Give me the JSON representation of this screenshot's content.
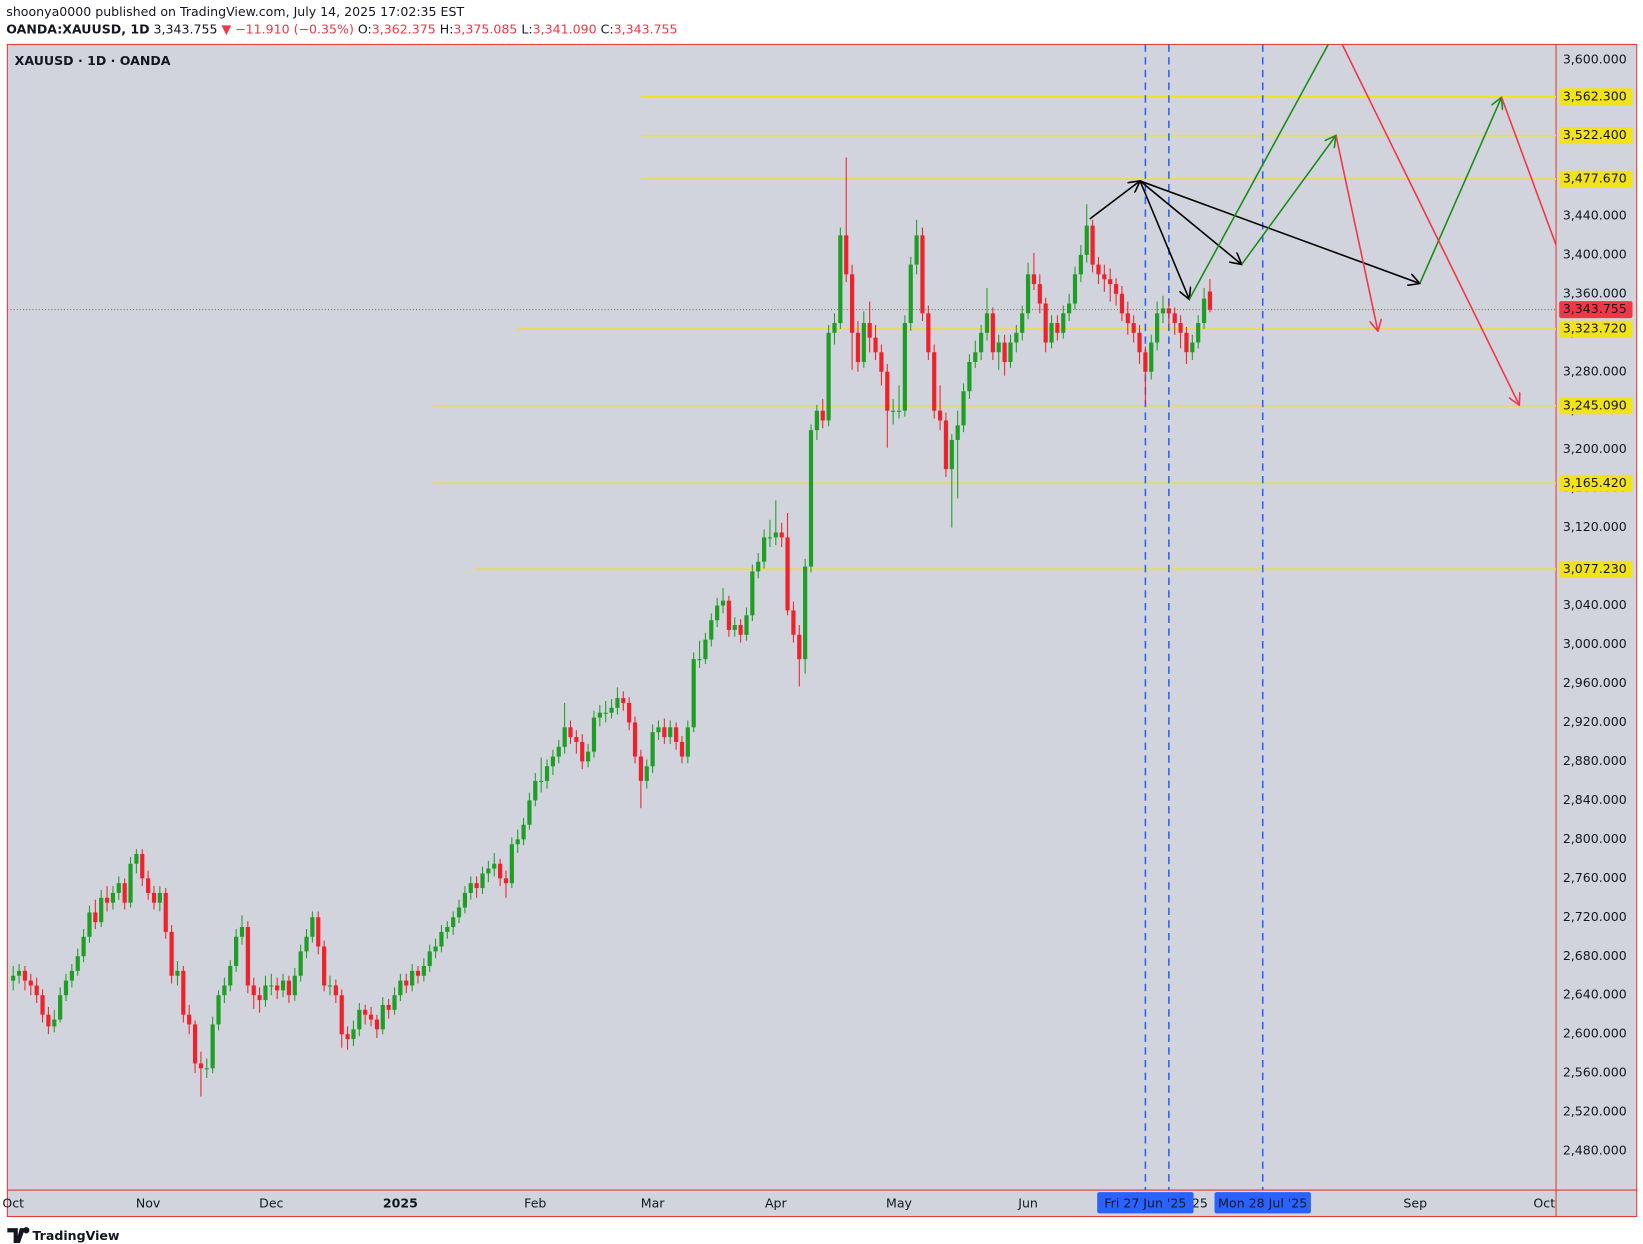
{
  "header": {
    "byline": "shoonya0000 published on TradingView.com, July 14, 2025 17:02:35 EST",
    "symbol": "OANDA:XAUUSD, 1D",
    "price": "3,343.755",
    "change": "▼ −11.910 (−0.35%)",
    "o_label": "O:",
    "o": "3,362.375",
    "h_label": "H:",
    "h": "3,375.085",
    "l_label": "L:",
    "l": "3,341.090",
    "c_label": "C:",
    "c": "3,343.755"
  },
  "brand": "TradingView",
  "chart_data": {
    "type": "candlestick",
    "legend_label": "XAUUSD · 1D · OANDA",
    "up_color": "#1f9e25",
    "down_color": "#f0212b",
    "level_color": "#f2e21a",
    "marker_color": "#2962ff",
    "last_color": "#f23645",
    "ylim": [
      2440,
      3616
    ],
    "yticks": [
      {
        "value": 2480,
        "label": "2,480.000"
      },
      {
        "value": 2520,
        "label": "2,520.000"
      },
      {
        "value": 2560,
        "label": "2,560.000"
      },
      {
        "value": 2600,
        "label": "2,600.000"
      },
      {
        "value": 2640,
        "label": "2,640.000"
      },
      {
        "value": 2680,
        "label": "2,680.000"
      },
      {
        "value": 2720,
        "label": "2,720.000"
      },
      {
        "value": 2760,
        "label": "2,760.000"
      },
      {
        "value": 2800,
        "label": "2,800.000"
      },
      {
        "value": 2840,
        "label": "2,840.000"
      },
      {
        "value": 2880,
        "label": "2,880.000"
      },
      {
        "value": 2920,
        "label": "2,920.000"
      },
      {
        "value": 2960,
        "label": "2,960.000"
      },
      {
        "value": 3000,
        "label": "3,000.000"
      },
      {
        "value": 3040,
        "label": "3,040.000"
      },
      {
        "value": 3080,
        "label": "3,080.000"
      },
      {
        "value": 3120,
        "label": "3,120.000"
      },
      {
        "value": 3160,
        "label": "3,160.000"
      },
      {
        "value": 3200,
        "label": "3,200.000"
      },
      {
        "value": 3240,
        "label": "3,240.000"
      },
      {
        "value": 3280,
        "label": "3,280.000"
      },
      {
        "value": 3320,
        "label": "3,320.000"
      },
      {
        "value": 3360,
        "label": "3,360.000"
      },
      {
        "value": 3400,
        "label": "3,400.000"
      },
      {
        "value": 3440,
        "label": "3,440.000"
      },
      {
        "value": 3480,
        "label": "3,480.000"
      },
      {
        "value": 3520,
        "label": "3,520.000"
      },
      {
        "value": 3560,
        "label": "3,560.000"
      },
      {
        "value": 3600,
        "label": "3,600.000"
      }
    ],
    "xlim": [
      -1,
      263
    ],
    "xticks": [
      {
        "value": 0,
        "label": "Oct"
      },
      {
        "value": 23,
        "label": "Nov"
      },
      {
        "value": 44,
        "label": "Dec"
      },
      {
        "value": 66,
        "label": "2025"
      },
      {
        "value": 89,
        "label": "Feb"
      },
      {
        "value": 109,
        "label": "Mar"
      },
      {
        "value": 130,
        "label": "Apr"
      },
      {
        "value": 151,
        "label": "May"
      },
      {
        "value": 173,
        "label": "Jun"
      },
      {
        "value": 202,
        "label": "'25"
      },
      {
        "value": 239,
        "label": "Sep"
      },
      {
        "value": 261,
        "label": "Oct"
      }
    ],
    "levels": [
      {
        "value": 3562.3,
        "label": "3,562.300"
      },
      {
        "value": 3522.4,
        "label": "3,522.400"
      },
      {
        "value": 3477.67,
        "label": "3,477.670"
      },
      {
        "value": 3323.72,
        "label": "3,323.720"
      },
      {
        "value": 3245.09,
        "label": "3,245.090"
      },
      {
        "value": 3165.42,
        "label": "3,165.420"
      },
      {
        "value": 3077.23,
        "label": "3,077.230"
      }
    ],
    "last_price": {
      "value": 3343.755,
      "label": "3,343.755"
    },
    "markers": [
      {
        "value": 193,
        "label": "Fri 27 Jun '25"
      },
      {
        "value": 197
      },
      {
        "value": 213,
        "label": "Mon 28 Jul '25"
      }
    ],
    "candles": [
      [
        2655,
        2670,
        2645,
        2660
      ],
      [
        2660,
        2672,
        2652,
        2665
      ],
      [
        2665,
        2670,
        2645,
        2655
      ],
      [
        2655,
        2662,
        2640,
        2650
      ],
      [
        2650,
        2658,
        2632,
        2640
      ],
      [
        2640,
        2646,
        2612,
        2620
      ],
      [
        2620,
        2628,
        2600,
        2608
      ],
      [
        2608,
        2625,
        2602,
        2615
      ],
      [
        2615,
        2648,
        2612,
        2640
      ],
      [
        2640,
        2662,
        2634,
        2655
      ],
      [
        2655,
        2672,
        2648,
        2665
      ],
      [
        2665,
        2688,
        2660,
        2680
      ],
      [
        2680,
        2708,
        2674,
        2700
      ],
      [
        2700,
        2732,
        2694,
        2725
      ],
      [
        2725,
        2738,
        2708,
        2715
      ],
      [
        2715,
        2748,
        2710,
        2740
      ],
      [
        2740,
        2752,
        2726,
        2735
      ],
      [
        2735,
        2752,
        2728,
        2745
      ],
      [
        2745,
        2762,
        2738,
        2755
      ],
      [
        2755,
        2760,
        2728,
        2735
      ],
      [
        2735,
        2782,
        2730,
        2775
      ],
      [
        2775,
        2790,
        2765,
        2785
      ],
      [
        2785,
        2790,
        2752,
        2760
      ],
      [
        2760,
        2768,
        2738,
        2745
      ],
      [
        2745,
        2752,
        2728,
        2735
      ],
      [
        2735,
        2752,
        2726,
        2745
      ],
      [
        2745,
        2750,
        2698,
        2705
      ],
      [
        2705,
        2712,
        2652,
        2660
      ],
      [
        2660,
        2675,
        2650,
        2665
      ],
      [
        2665,
        2670,
        2612,
        2620
      ],
      [
        2620,
        2630,
        2600,
        2610
      ],
      [
        2610,
        2614,
        2560,
        2570
      ],
      [
        2570,
        2582,
        2536,
        2565
      ],
      [
        2565,
        2575,
        2555,
        2565
      ],
      [
        2565,
        2618,
        2560,
        2610
      ],
      [
        2610,
        2645,
        2604,
        2640
      ],
      [
        2640,
        2658,
        2632,
        2650
      ],
      [
        2650,
        2676,
        2644,
        2670
      ],
      [
        2670,
        2708,
        2664,
        2700
      ],
      [
        2700,
        2722,
        2692,
        2710
      ],
      [
        2710,
        2716,
        2642,
        2650
      ],
      [
        2650,
        2658,
        2626,
        2640
      ],
      [
        2640,
        2648,
        2622,
        2635
      ],
      [
        2635,
        2660,
        2628,
        2650
      ],
      [
        2650,
        2662,
        2640,
        2650
      ],
      [
        2650,
        2658,
        2636,
        2645
      ],
      [
        2645,
        2662,
        2638,
        2655
      ],
      [
        2655,
        2660,
        2632,
        2640
      ],
      [
        2640,
        2668,
        2634,
        2660
      ],
      [
        2660,
        2692,
        2654,
        2685
      ],
      [
        2685,
        2708,
        2678,
        2700
      ],
      [
        2700,
        2726,
        2694,
        2720
      ],
      [
        2720,
        2726,
        2682,
        2690
      ],
      [
        2690,
        2696,
        2644,
        2650
      ],
      [
        2650,
        2660,
        2640,
        2650
      ],
      [
        2650,
        2656,
        2632,
        2640
      ],
      [
        2640,
        2646,
        2586,
        2600
      ],
      [
        2600,
        2608,
        2584,
        2595
      ],
      [
        2595,
        2614,
        2588,
        2605
      ],
      [
        2605,
        2632,
        2598,
        2625
      ],
      [
        2625,
        2630,
        2610,
        2620
      ],
      [
        2620,
        2628,
        2608,
        2615
      ],
      [
        2615,
        2620,
        2596,
        2605
      ],
      [
        2605,
        2638,
        2600,
        2630
      ],
      [
        2630,
        2636,
        2616,
        2625
      ],
      [
        2625,
        2648,
        2620,
        2640
      ],
      [
        2640,
        2662,
        2634,
        2655
      ],
      [
        2655,
        2662,
        2642,
        2650
      ],
      [
        2650,
        2672,
        2644,
        2665
      ],
      [
        2665,
        2670,
        2652,
        2660
      ],
      [
        2660,
        2678,
        2654,
        2670
      ],
      [
        2670,
        2692,
        2664,
        2685
      ],
      [
        2685,
        2698,
        2678,
        2690
      ],
      [
        2690,
        2712,
        2684,
        2705
      ],
      [
        2705,
        2716,
        2698,
        2710
      ],
      [
        2710,
        2726,
        2702,
        2720
      ],
      [
        2720,
        2738,
        2714,
        2730
      ],
      [
        2730,
        2752,
        2724,
        2745
      ],
      [
        2745,
        2762,
        2738,
        2755
      ],
      [
        2755,
        2762,
        2740,
        2750
      ],
      [
        2750,
        2772,
        2744,
        2765
      ],
      [
        2765,
        2778,
        2756,
        2770
      ],
      [
        2770,
        2786,
        2762,
        2775
      ],
      [
        2775,
        2780,
        2752,
        2760
      ],
      [
        2760,
        2768,
        2740,
        2755
      ],
      [
        2755,
        2802,
        2750,
        2795
      ],
      [
        2795,
        2810,
        2786,
        2800
      ],
      [
        2800,
        2822,
        2794,
        2815
      ],
      [
        2815,
        2848,
        2810,
        2840
      ],
      [
        2840,
        2868,
        2834,
        2860
      ],
      [
        2860,
        2884,
        2848,
        2860
      ],
      [
        2860,
        2882,
        2852,
        2875
      ],
      [
        2875,
        2892,
        2866,
        2885
      ],
      [
        2885,
        2902,
        2878,
        2895
      ],
      [
        2895,
        2940,
        2888,
        2915
      ],
      [
        2915,
        2922,
        2898,
        2905
      ],
      [
        2905,
        2912,
        2888,
        2900
      ],
      [
        2900,
        2908,
        2872,
        2880
      ],
      [
        2880,
        2898,
        2874,
        2890
      ],
      [
        2890,
        2932,
        2884,
        2925
      ],
      [
        2925,
        2938,
        2916,
        2930
      ],
      [
        2930,
        2942,
        2920,
        2930
      ],
      [
        2930,
        2944,
        2924,
        2935
      ],
      [
        2935,
        2956,
        2928,
        2945
      ],
      [
        2945,
        2952,
        2932,
        2940
      ],
      [
        2940,
        2946,
        2912,
        2920
      ],
      [
        2920,
        2926,
        2878,
        2885
      ],
      [
        2885,
        2892,
        2832,
        2860
      ],
      [
        2860,
        2882,
        2852,
        2875
      ],
      [
        2875,
        2918,
        2868,
        2910
      ],
      [
        2910,
        2922,
        2902,
        2915
      ],
      [
        2915,
        2924,
        2898,
        2905
      ],
      [
        2905,
        2922,
        2898,
        2915
      ],
      [
        2915,
        2920,
        2892,
        2900
      ],
      [
        2900,
        2906,
        2878,
        2885
      ],
      [
        2885,
        2922,
        2878,
        2915
      ],
      [
        2915,
        2992,
        2910,
        2985
      ],
      [
        2985,
        3004,
        2976,
        2985
      ],
      [
        2985,
        3012,
        2980,
        3005
      ],
      [
        3005,
        3032,
        2998,
        3025
      ],
      [
        3025,
        3048,
        3018,
        3040
      ],
      [
        3040,
        3058,
        3032,
        3045
      ],
      [
        3045,
        3050,
        3008,
        3015
      ],
      [
        3015,
        3028,
        3008,
        3020
      ],
      [
        3020,
        3026,
        3002,
        3010
      ],
      [
        3010,
        3038,
        3004,
        3030
      ],
      [
        3030,
        3082,
        3024,
        3075
      ],
      [
        3075,
        3094,
        3068,
        3085
      ],
      [
        3085,
        3118,
        3078,
        3110
      ],
      [
        3110,
        3128,
        3100,
        3110
      ],
      [
        3110,
        3148,
        3102,
        3115
      ],
      [
        3115,
        3125,
        3100,
        3110
      ],
      [
        3110,
        3135,
        3030,
        3035
      ],
      [
        3035,
        3044,
        3002,
        3010
      ],
      [
        3010,
        3020,
        2957,
        2985
      ],
      [
        2985,
        3088,
        2970,
        3080
      ],
      [
        3080,
        3226,
        3074,
        3220
      ],
      [
        3220,
        3246,
        3210,
        3240
      ],
      [
        3240,
        3252,
        3222,
        3230
      ],
      [
        3230,
        3328,
        3224,
        3320
      ],
      [
        3320,
        3340,
        3308,
        3330
      ],
      [
        3330,
        3428,
        3324,
        3420
      ],
      [
        3420,
        3500,
        3372,
        3380
      ],
      [
        3380,
        3390,
        3282,
        3320
      ],
      [
        3320,
        3332,
        3280,
        3290
      ],
      [
        3290,
        3342,
        3284,
        3330
      ],
      [
        3330,
        3352,
        3300,
        3315
      ],
      [
        3315,
        3328,
        3292,
        3300
      ],
      [
        3300,
        3308,
        3266,
        3280
      ],
      [
        3280,
        3288,
        3202,
        3240
      ],
      [
        3240,
        3252,
        3226,
        3240
      ],
      [
        3240,
        3266,
        3232,
        3240
      ],
      [
        3240,
        3338,
        3234,
        3330
      ],
      [
        3330,
        3398,
        3322,
        3390
      ],
      [
        3390,
        3436,
        3380,
        3420
      ],
      [
        3420,
        3428,
        3332,
        3340
      ],
      [
        3340,
        3348,
        3292,
        3300
      ],
      [
        3300,
        3308,
        3232,
        3240
      ],
      [
        3240,
        3266,
        3220,
        3230
      ],
      [
        3230,
        3238,
        3172,
        3180
      ],
      [
        3180,
        3216,
        3120,
        3210
      ],
      [
        3210,
        3240,
        3150,
        3225
      ],
      [
        3225,
        3268,
        3218,
        3260
      ],
      [
        3260,
        3298,
        3252,
        3290
      ],
      [
        3290,
        3312,
        3284,
        3300
      ],
      [
        3300,
        3328,
        3292,
        3320
      ],
      [
        3320,
        3366,
        3312,
        3340
      ],
      [
        3340,
        3346,
        3292,
        3300
      ],
      [
        3300,
        3318,
        3282,
        3310
      ],
      [
        3310,
        3318,
        3276,
        3290
      ],
      [
        3290,
        3318,
        3284,
        3310
      ],
      [
        3310,
        3328,
        3300,
        3320
      ],
      [
        3320,
        3348,
        3312,
        3340
      ],
      [
        3340,
        3392,
        3334,
        3380
      ],
      [
        3380,
        3402,
        3364,
        3370
      ],
      [
        3370,
        3380,
        3340,
        3350
      ],
      [
        3350,
        3356,
        3300,
        3310
      ],
      [
        3310,
        3338,
        3304,
        3330
      ],
      [
        3330,
        3338,
        3312,
        3320
      ],
      [
        3320,
        3348,
        3314,
        3340
      ],
      [
        3340,
        3360,
        3332,
        3350
      ],
      [
        3350,
        3388,
        3344,
        3380
      ],
      [
        3380,
        3410,
        3372,
        3400
      ],
      [
        3400,
        3452,
        3392,
        3430
      ],
      [
        3430,
        3436,
        3382,
        3390
      ],
      [
        3390,
        3398,
        3370,
        3380
      ],
      [
        3380,
        3390,
        3362,
        3375
      ],
      [
        3375,
        3386,
        3352,
        3370
      ],
      [
        3370,
        3376,
        3348,
        3360
      ],
      [
        3360,
        3368,
        3332,
        3340
      ],
      [
        3340,
        3352,
        3318,
        3330
      ],
      [
        3330,
        3338,
        3310,
        3320
      ],
      [
        3320,
        3328,
        3288,
        3300
      ],
      [
        3300,
        3306,
        3248,
        3280
      ],
      [
        3280,
        3318,
        3272,
        3310
      ],
      [
        3310,
        3352,
        3302,
        3340
      ],
      [
        3340,
        3358,
        3330,
        3345
      ],
      [
        3345,
        3352,
        3326,
        3340
      ],
      [
        3340,
        3346,
        3318,
        3330
      ],
      [
        3330,
        3338,
        3304,
        3320
      ],
      [
        3320,
        3326,
        3288,
        3300
      ],
      [
        3300,
        3318,
        3292,
        3310
      ],
      [
        3310,
        3338,
        3304,
        3330
      ],
      [
        3330,
        3366,
        3324,
        3355
      ],
      [
        3362.375,
        3375.085,
        3341.09,
        3343.755
      ]
    ]
  }
}
